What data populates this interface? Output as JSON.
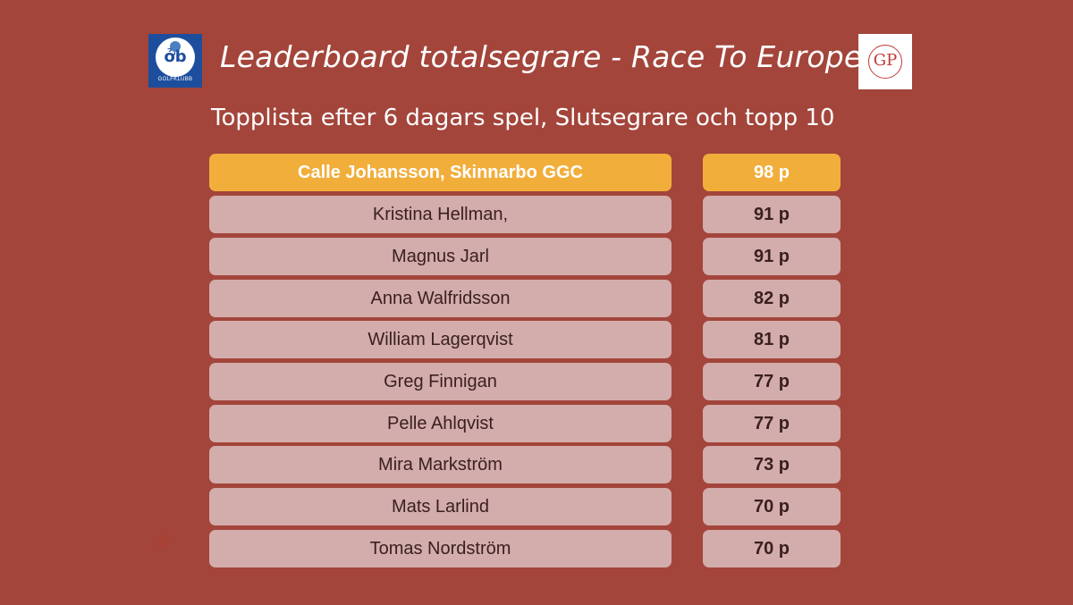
{
  "header": {
    "title": "Leaderboard totalsegrare - Race To Europe",
    "subtitle": "Topplista efter 6 dagars spel, Slutsegrare och topp 10",
    "left_logo_text": "GOLFKLUBB",
    "right_logo_text": "GP"
  },
  "leaderboard": [
    {
      "name": "Calle Johansson, Skinnarbo GGC",
      "score": "98 p"
    },
    {
      "name": "Kristina Hellman,",
      "score": "91 p"
    },
    {
      "name": "Magnus Jarl",
      "score": "91 p"
    },
    {
      "name": "Anna Walfridsson",
      "score": "82 p"
    },
    {
      "name": "William Lagerqvist",
      "score": "81 p"
    },
    {
      "name": "Greg Finnigan",
      "score": "77 p"
    },
    {
      "name": "Pelle Ahlqvist",
      "score": "77 p"
    },
    {
      "name": "Mira Markström",
      "score": "73 p"
    },
    {
      "name": "Mats Larlind",
      "score": "70 p"
    },
    {
      "name": "Tomas Nordström",
      "score": "70 p"
    }
  ],
  "colors": {
    "background": "#a3453b",
    "row": "#d3adab",
    "leader": "#f2ae3b"
  },
  "icons": {
    "decoration": "star-icon"
  }
}
